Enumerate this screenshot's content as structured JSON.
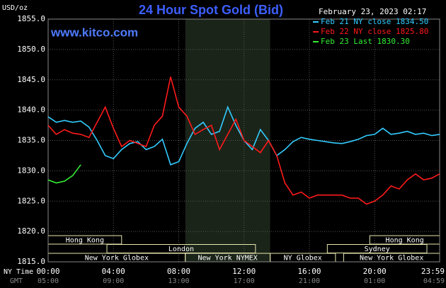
{
  "chart_data": {
    "type": "line",
    "title": "24 Hour Spot Gold (Bid)",
    "y_label": "USD/oz",
    "watermark": "www.kitco.com",
    "timestamp": "February 23, 2023 02:17",
    "x_label": "NY Time",
    "x2_label": "GMT",
    "x": [
      0,
      0.5,
      1,
      1.5,
      2,
      2.5,
      3,
      3.5,
      4,
      4.5,
      5,
      5.5,
      6,
      6.5,
      7,
      7.5,
      8,
      8.5,
      9,
      9.5,
      10,
      10.5,
      11,
      11.5,
      12,
      12.5,
      13,
      13.5,
      14,
      14.5,
      15,
      15.5,
      16,
      16.5,
      17,
      17.5,
      18,
      18.5,
      19,
      19.5,
      20,
      20.5,
      21,
      21.5,
      22,
      22.5,
      23,
      23.5,
      23.98
    ],
    "xlim": [
      0,
      23.98
    ],
    "xticks": [
      {
        "value": 0,
        "label": "00:00"
      },
      {
        "value": 4,
        "label": "04:00"
      },
      {
        "value": 8,
        "label": "08:00"
      },
      {
        "value": 12,
        "label": "12:00"
      },
      {
        "value": 16,
        "label": "16:00"
      },
      {
        "value": 20,
        "label": "20:00"
      },
      {
        "value": 23.98,
        "label": "23:59"
      }
    ],
    "x2ticks": [
      "05:00",
      "09:00",
      "13:00",
      "17:00",
      "21:00",
      "01:00",
      "04:59"
    ],
    "ylim": [
      1815,
      1855
    ],
    "yticks": [
      {
        "value": 1815,
        "label": "1815.0"
      },
      {
        "value": 1820,
        "label": "1820.0"
      },
      {
        "value": 1825,
        "label": "1825.0"
      },
      {
        "value": 1830,
        "label": "1830.0"
      },
      {
        "value": 1835,
        "label": "1835.0"
      },
      {
        "value": 1840,
        "label": "1840.0"
      },
      {
        "value": 1845,
        "label": "1845.0"
      },
      {
        "value": 1850,
        "label": "1850.0"
      },
      {
        "value": 1855,
        "label": "1855.0"
      }
    ],
    "grid": true,
    "series": [
      {
        "name": "Feb 21 NY close 1834.50",
        "color": "#33ccff",
        "values": [
          1838.9,
          1838.0,
          1838.3,
          1838.0,
          1838.2,
          1837.2,
          1835.0,
          1832.5,
          1832.0,
          1833.5,
          1834.5,
          1834.8,
          1833.5,
          1834.0,
          1835.2,
          1831.0,
          1831.5,
          1834.5,
          1837.0,
          1838.0,
          1836.0,
          1836.5,
          1840.5,
          1837.5,
          1835.0,
          1833.5,
          1836.8,
          1835.0,
          1832.5,
          1833.5,
          1834.8,
          1835.5,
          1835.2,
          1835.0,
          1834.8,
          1834.6,
          1834.5,
          1834.8,
          1835.2,
          1835.8,
          1836.0,
          1837.0,
          1836.0,
          1836.2,
          1836.5,
          1836.0,
          1836.2,
          1835.8,
          1836.0
        ]
      },
      {
        "name": "Feb 22 NY close 1825.80",
        "color": "#ff1a1a",
        "values": [
          1837.5,
          1836.0,
          1836.8,
          1836.2,
          1836.0,
          1835.5,
          1838.0,
          1840.5,
          1837.0,
          1834.0,
          1835.0,
          1834.5,
          1834.0,
          1837.5,
          1839.0,
          1845.5,
          1840.5,
          1839.0,
          1836.0,
          1836.8,
          1837.5,
          1833.5,
          1836.0,
          1838.5,
          1835.0,
          1834.0,
          1833.0,
          1835.0,
          1832.5,
          1828.0,
          1826.0,
          1826.5,
          1825.5,
          1826.0,
          1826.0,
          1826.0,
          1826.0,
          1825.5,
          1825.5,
          1824.5,
          1825.0,
          1826.0,
          1827.5,
          1827.0,
          1828.5,
          1829.5,
          1828.5,
          1828.8,
          1829.5
        ]
      },
      {
        "name": "Feb 23 Last 1830.30",
        "color": "#33ee33",
        "values": [
          1828.5,
          1828.0,
          1828.3,
          1829.2,
          1831.0,
          null,
          null,
          null,
          null,
          null,
          null,
          null,
          null,
          null,
          null,
          null,
          null,
          null,
          null,
          null,
          null,
          null,
          null,
          null,
          null,
          null,
          null,
          null,
          null,
          null,
          null,
          null,
          null,
          null,
          null,
          null,
          null,
          null,
          null,
          null,
          null,
          null,
          null,
          null,
          null,
          null,
          null,
          null,
          null
        ]
      }
    ],
    "sessions": [
      {
        "name": "Hong Kong",
        "row": 0,
        "start": 0,
        "end": 4.5
      },
      {
        "name": "Hong Kong",
        "row": 0,
        "start": 19.7,
        "end": 23.98
      },
      {
        "name": "London",
        "row": 1,
        "start": 3.6,
        "end": 12.7
      },
      {
        "name": "Sydney",
        "row": 1,
        "start": 17.1,
        "end": 23.2
      },
      {
        "name": "New York Globex",
        "row": 2,
        "start": 0,
        "end": 8.4
      },
      {
        "name": "New York NYMEX",
        "row": 2,
        "start": 8.4,
        "end": 13.6
      },
      {
        "name": "NY Globex",
        "row": 2,
        "start": 13.6,
        "end": 17.6
      },
      {
        "name": "New York Globex",
        "row": 2,
        "start": 18.1,
        "end": 23.98
      }
    ],
    "highlight_session": 5
  }
}
